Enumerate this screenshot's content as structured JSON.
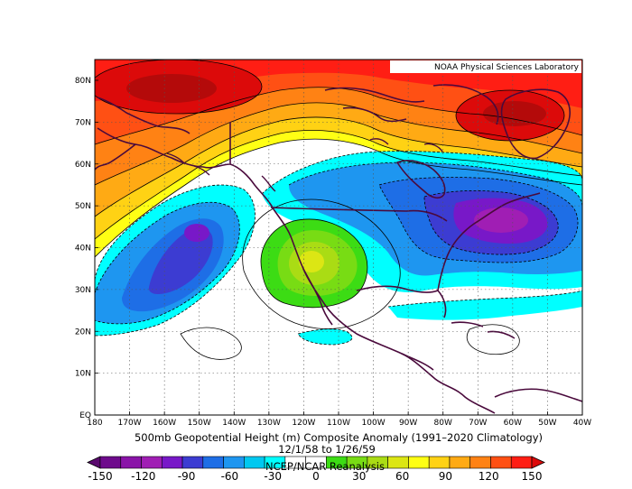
{
  "map": {
    "credit": "NOAA Physical Sciences Laboratory",
    "title": "500mb Geopotential Height (m) Composite Anomaly (1991–2020 Climatology)",
    "date_range": "12/1/58  to 1/26/59",
    "source": "NCEP/NCAR Reanalysis",
    "lat_labels": [
      "80N",
      "70N",
      "60N",
      "50N",
      "40N",
      "30N",
      "20N",
      "10N",
      "EQ"
    ],
    "lon_labels": [
      "180",
      "170W",
      "160W",
      "150W",
      "140W",
      "130W",
      "120W",
      "110W",
      "100W",
      "90W",
      "80W",
      "70W",
      "60W",
      "50W",
      "40W"
    ],
    "colorbar": {
      "labels": [
        "-150",
        "-120",
        "-90",
        "-60",
        "-30",
        "0",
        "30",
        "60",
        "90",
        "120",
        "150"
      ],
      "colors": [
        "#5a0a6e",
        "#6e0a8c",
        "#8a14a8",
        "#a01eb4",
        "#7818c8",
        "#3c3cd2",
        "#1e6ee6",
        "#1e96f0",
        "#00c8f0",
        "#00ffff",
        "#ffffff",
        "#ffffff",
        "#3cdc14",
        "#78dc14",
        "#aadc14",
        "#dce614",
        "#ffff14",
        "#ffd214",
        "#ffaa14",
        "#ff8214",
        "#ff5014",
        "#ff1e14",
        "#dc0a0a"
      ]
    }
  }
}
